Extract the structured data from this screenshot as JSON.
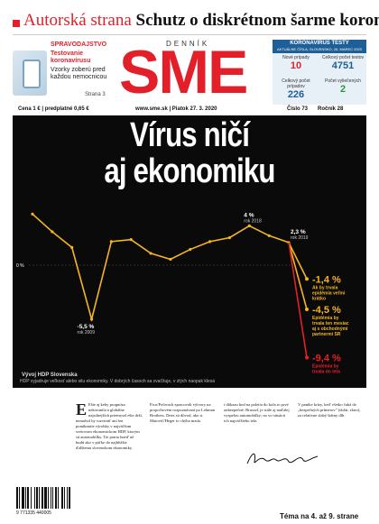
{
  "banner": {
    "section": "Autorská strana",
    "headline": "Schutz o diskrétnom šarme korony"
  },
  "promo": {
    "tag": "SPRAVODAJSTVO",
    "headline": "Testovanie koronavírusu",
    "desc": "Vzorky zoberú pred každou nemocnicou",
    "page": "Strana 3"
  },
  "masthead": {
    "denik": "DENNÍK",
    "logo": "SME"
  },
  "corona": {
    "title": "KORONAVÍRUS TESTY",
    "subtitle": "AKTUÁLNE ČÍSLA, SLOVENSKO, 26. MAREC 2020",
    "cells": [
      {
        "label": "Nové prípady",
        "value": "10",
        "color": "#e3202a"
      },
      {
        "label": "Celkový počet testov",
        "value": "4751",
        "color": "#1f5f98"
      },
      {
        "label": "Celkový počet prípadov",
        "value": "226",
        "color": "#1f5f98"
      },
      {
        "label": "Počet vyliečených",
        "value": "2",
        "color": "#2a9a3b"
      }
    ]
  },
  "info": {
    "price": "Cena 1 €  |  predplatné 0,65 €",
    "site_date": "www.sme.sk  |  Piatok 27. 3. 2020",
    "number": "Číslo 73",
    "year": "Ročník 28"
  },
  "cover": {
    "headline_line1": "Vírus ničí",
    "headline_line2": "aj ekonomiku",
    "chart_title": "Vývoj HDP Slovenska",
    "caption": "HDP vyjadruje veľkosť alebo silu ekonomiky. V dobrých časoch sa zvačšuje, v zlých naopak klesá"
  },
  "chart_data": {
    "type": "line",
    "zero_label": "0 %",
    "series": [
      {
        "values": [
          5.2,
          3.4,
          1.8,
          -5.5,
          2.4,
          2.6,
          1.2,
          0.6,
          1.6,
          2.4,
          2.8,
          4.0,
          3.0,
          2.3
        ]
      }
    ],
    "annotations": [
      {
        "text": "-5,5 %",
        "sub": "rok 2009",
        "value": -5.5
      },
      {
        "text": "4 %",
        "sub": "rok 2018",
        "value": 4.0
      },
      {
        "text": "2,3 %",
        "sub": "rok 2019",
        "value": 2.3
      }
    ],
    "scenarios": [
      {
        "value": "-1,4 %",
        "label": "Ak by trvala epidémia veľmi krátko",
        "color": "#f5b51f",
        "y": -1.4
      },
      {
        "value": "-4,5 %",
        "label": "Epidémia by trvala ten mesiac aj s obchodnými partnermi SR",
        "color": "#f5b51f",
        "y": -4.5
      },
      {
        "value": "-9,4 %",
        "label": "Epidémia by trvala do leta",
        "color": "#e3202a",
        "y": -9.4
      }
    ]
  },
  "article": {
    "col1": "Ešte aj keby prognóza nekorunila a globálne najsilnejších priemysel ešte drží, nemohol by rozvinúť ani len ponúknutie výrobky v najväčšom svetovom ekonomickom HDP, ktorým sú automobilky. Tie patria hneď už budú ako v päťke do najbližšie ďalšiemu slovenskom ekonomiky.",
    "col2": "Fico/Počerach zpracovali výtvory na propočtovém rozpoznávaní po Lehman Brothers. Dnes sú dôvod, ako si Matovič/Heger to chýba mzda.",
    "col3": "i dôkazu bod na poletia do kola to prvé onbezpečné: Brussel, je stále aj naďalej vyspelou automobilky; no vo situácii ich najväčšieho tela.",
    "col4": "V panike krízy, keď všetko čaká do „bezpečných prímerov\" (dolár, zlato), za relatívne slabý štátny dlh."
  },
  "bottom": {
    "barcode": "9 771335 440005",
    "theme": "Téma na 4. až 9. strane"
  }
}
